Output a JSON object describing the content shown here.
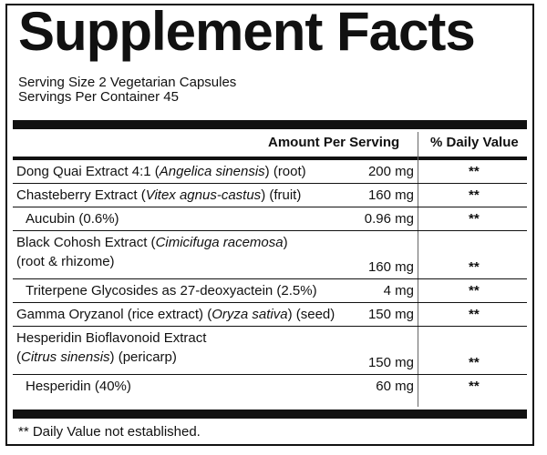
{
  "title": "Supplement Facts",
  "serving_size": "Serving Size 2 Vegetarian Capsules",
  "servings_per_container": "Servings Per Container 45",
  "headers": {
    "amount": "Amount Per Serving",
    "dv": "% Daily Value"
  },
  "rows": [
    {
      "line1_a": "Dong Quai Extract 4:1 (",
      "line1_i": "Angelica sinensis",
      "line1_b": ") (root)",
      "amount": "200 mg",
      "dv": "**"
    },
    {
      "line1_a": "Chasteberry Extract (",
      "line1_i": "Vitex agnus-castus",
      "line1_b": ") (fruit)",
      "amount": "160 mg",
      "dv": "**"
    },
    {
      "line1": "Aucubin (0.6%)",
      "amount": "0.96 mg",
      "dv": "**"
    },
    {
      "line1_a": "Black Cohosh Extract (",
      "line1_i": "Cimicifuga racemosa",
      "line1_b": ")",
      "line2": "(root & rhizome)",
      "amount": "160 mg",
      "dv": "**"
    },
    {
      "line1": "Triterpene Glycosides as 27-deoxyactein (2.5%)",
      "amount": "4 mg",
      "dv": "**"
    },
    {
      "line1_a": "Gamma Oryzanol (rice extract) (",
      "line1_i": "Oryza sativa",
      "line1_b": ") (seed)",
      "amount": "150 mg",
      "dv": "**"
    },
    {
      "line1": "Hesperidin Bioflavonoid Extract",
      "line2_a": "(",
      "line2_i": "Citrus sinensis",
      "line2_b": ") (pericarp)",
      "amount": "150 mg",
      "dv": "**"
    },
    {
      "line1": "Hesperidin (40%)",
      "amount": "60 mg",
      "dv": "**"
    }
  ],
  "footnote": "** Daily Value not established."
}
